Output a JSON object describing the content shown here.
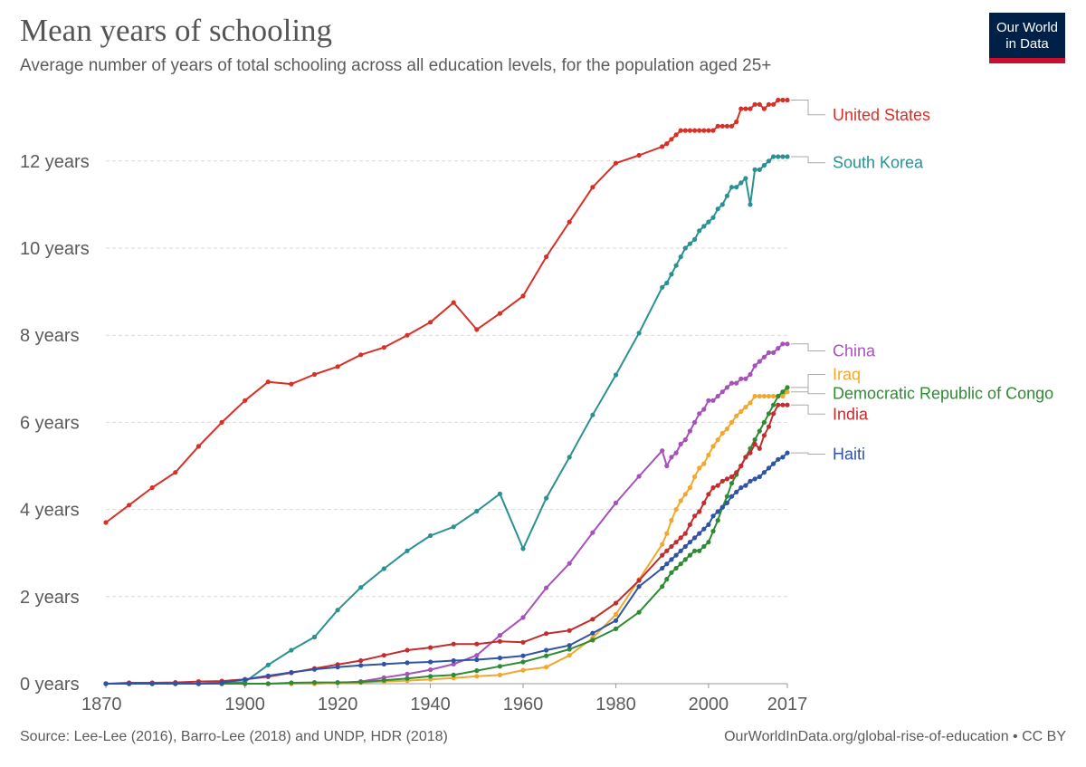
{
  "header": {
    "title": "Mean years of schooling",
    "subtitle": "Average number of years of total schooling across all education levels, for the population aged 25+",
    "logo_line1": "Our World",
    "logo_line2": "in Data",
    "logo_colors": {
      "background": "#002147",
      "accent": "#c8102e"
    }
  },
  "footer": {
    "source": "Source: Lee-Lee (2016), Barro-Lee (2018) and UNDP, HDR (2018)",
    "credit": "OurWorldInData.org/global-rise-of-education • CC BY"
  },
  "chart_data": {
    "type": "line",
    "title": "Mean years of schooling",
    "subtitle": "Average number of years of total schooling across all education levels, for the population aged 25+",
    "xlim": [
      1870,
      2017
    ],
    "ylim": [
      0,
      13.4
    ],
    "x_ticks": [
      {
        "value": 1870,
        "label": "1870"
      },
      {
        "value": 1900,
        "label": "1900"
      },
      {
        "value": 1920,
        "label": "1920"
      },
      {
        "value": 1940,
        "label": "1940"
      },
      {
        "value": 1960,
        "label": "1960"
      },
      {
        "value": 1980,
        "label": "1980"
      },
      {
        "value": 2000,
        "label": "2000"
      },
      {
        "value": 2017,
        "label": "2017"
      }
    ],
    "y_ticks": [
      {
        "value": 0,
        "label": "0 years"
      },
      {
        "value": 2,
        "label": "2 years"
      },
      {
        "value": 4,
        "label": "4 years"
      },
      {
        "value": 6,
        "label": "6 years"
      },
      {
        "value": 8,
        "label": "8 years"
      },
      {
        "value": 10,
        "label": "10 years"
      },
      {
        "value": 12,
        "label": "12 years"
      }
    ],
    "grid": "horizontal dashed",
    "legend": "right, labels at line ends",
    "series": [
      {
        "name": "United States",
        "color": "#d73027",
        "x": [
          1870,
          1875,
          1880,
          1885,
          1890,
          1895,
          1900,
          1905,
          1910,
          1915,
          1920,
          1925,
          1930,
          1935,
          1940,
          1945,
          1950,
          1955,
          1960,
          1965,
          1970,
          1975,
          1980,
          1985,
          1990,
          1991,
          1992,
          1993,
          1994,
          1995,
          1996,
          1997,
          1998,
          1999,
          2000,
          2001,
          2002,
          2003,
          2004,
          2005,
          2006,
          2007,
          2008,
          2009,
          2010,
          2011,
          2012,
          2013,
          2014,
          2015,
          2016,
          2017
        ],
        "y": [
          3.7,
          4.1,
          4.5,
          4.85,
          5.45,
          6.0,
          6.5,
          6.93,
          6.88,
          7.1,
          7.28,
          7.55,
          7.72,
          8.0,
          8.3,
          8.75,
          8.13,
          8.5,
          8.9,
          9.8,
          10.6,
          11.4,
          11.95,
          12.13,
          12.33,
          12.4,
          12.5,
          12.6,
          12.7,
          12.7,
          12.7,
          12.7,
          12.7,
          12.7,
          12.7,
          12.7,
          12.8,
          12.8,
          12.8,
          12.8,
          12.9,
          13.2,
          13.2,
          13.2,
          13.3,
          13.3,
          13.2,
          13.3,
          13.3,
          13.4,
          13.4,
          13.4
        ]
      },
      {
        "name": "South Korea",
        "color": "#2a9191",
        "x": [
          1870,
          1875,
          1880,
          1885,
          1890,
          1895,
          1900,
          1905,
          1910,
          1915,
          1920,
          1925,
          1930,
          1935,
          1940,
          1945,
          1950,
          1955,
          1960,
          1965,
          1970,
          1975,
          1980,
          1985,
          1990,
          1991,
          1992,
          1993,
          1994,
          1995,
          1996,
          1997,
          1998,
          1999,
          2000,
          2001,
          2002,
          2003,
          2004,
          2005,
          2006,
          2007,
          2008,
          2009,
          2010,
          2011,
          2012,
          2013,
          2014,
          2015,
          2016,
          2017
        ],
        "y": [
          0.0,
          0.0,
          0.0,
          0.0,
          0.0,
          0.0,
          0.04,
          0.43,
          0.77,
          1.07,
          1.69,
          2.21,
          2.64,
          3.05,
          3.4,
          3.6,
          3.96,
          4.36,
          3.1,
          4.26,
          5.2,
          6.17,
          7.09,
          8.05,
          9.1,
          9.2,
          9.4,
          9.6,
          9.8,
          10.0,
          10.1,
          10.2,
          10.4,
          10.5,
          10.6,
          10.7,
          10.9,
          11.0,
          11.2,
          11.4,
          11.4,
          11.5,
          11.6,
          11.0,
          11.8,
          11.8,
          11.9,
          12.0,
          12.1,
          12.1,
          12.1,
          12.1
        ]
      },
      {
        "name": "China",
        "color": "#a652ba",
        "x": [
          1870,
          1875,
          1880,
          1885,
          1890,
          1895,
          1900,
          1905,
          1910,
          1915,
          1920,
          1925,
          1930,
          1935,
          1940,
          1945,
          1950,
          1955,
          1960,
          1965,
          1970,
          1975,
          1980,
          1985,
          1990,
          1991,
          1992,
          1993,
          1994,
          1995,
          1996,
          1997,
          1998,
          1999,
          2000,
          2001,
          2002,
          2003,
          2004,
          2005,
          2006,
          2007,
          2008,
          2009,
          2010,
          2011,
          2012,
          2013,
          2014,
          2015,
          2016,
          2017
        ],
        "y": [
          0.0,
          0.0,
          0.0,
          0.0,
          0.0,
          0.0,
          0.0,
          0.0,
          0.0,
          0.0,
          0.02,
          0.05,
          0.14,
          0.22,
          0.32,
          0.45,
          0.65,
          1.11,
          1.52,
          2.2,
          2.76,
          3.47,
          4.15,
          4.76,
          5.35,
          5.0,
          5.2,
          5.3,
          5.5,
          5.6,
          5.8,
          6.0,
          6.2,
          6.3,
          6.5,
          6.5,
          6.6,
          6.7,
          6.8,
          6.9,
          6.9,
          7.0,
          7.0,
          7.1,
          7.3,
          7.4,
          7.5,
          7.6,
          7.6,
          7.7,
          7.8,
          7.8
        ]
      },
      {
        "name": "Iraq",
        "color": "#f2a72e",
        "x": [
          1870,
          1875,
          1880,
          1885,
          1890,
          1895,
          1900,
          1905,
          1910,
          1915,
          1920,
          1925,
          1930,
          1935,
          1940,
          1945,
          1950,
          1955,
          1960,
          1965,
          1970,
          1975,
          1980,
          1985,
          1990,
          1991,
          1992,
          1993,
          1994,
          1995,
          1996,
          1997,
          1998,
          1999,
          2000,
          2001,
          2002,
          2003,
          2004,
          2005,
          2006,
          2007,
          2008,
          2009,
          2010,
          2011,
          2012,
          2013,
          2014,
          2015,
          2016,
          2017
        ],
        "y": [
          0.0,
          0.0,
          0.0,
          0.0,
          0.0,
          0.0,
          0.0,
          0.0,
          0.0,
          0.0,
          0.02,
          0.03,
          0.05,
          0.07,
          0.1,
          0.13,
          0.17,
          0.2,
          0.31,
          0.38,
          0.65,
          1.05,
          1.59,
          2.39,
          3.2,
          3.45,
          3.75,
          4.0,
          4.2,
          4.35,
          4.5,
          4.75,
          4.95,
          5.05,
          5.25,
          5.45,
          5.6,
          5.75,
          5.85,
          6.0,
          6.15,
          6.25,
          6.35,
          6.45,
          6.6,
          6.6,
          6.6,
          6.6,
          6.6,
          6.6,
          6.6,
          6.7
        ]
      },
      {
        "name": "Democratic Republic of Congo",
        "color": "#2e8b34",
        "x": [
          1870,
          1875,
          1880,
          1885,
          1890,
          1895,
          1900,
          1905,
          1910,
          1915,
          1920,
          1925,
          1930,
          1935,
          1940,
          1945,
          1950,
          1955,
          1960,
          1965,
          1970,
          1975,
          1980,
          1985,
          1990,
          1991,
          1992,
          1993,
          1994,
          1995,
          1996,
          1997,
          1998,
          1999,
          2000,
          2001,
          2002,
          2003,
          2004,
          2005,
          2006,
          2007,
          2008,
          2009,
          2010,
          2011,
          2012,
          2013,
          2014,
          2015,
          2016,
          2017
        ],
        "y": [
          0.0,
          0.0,
          0.0,
          0.0,
          0.0,
          0.0,
          0.0,
          0.0,
          0.02,
          0.03,
          0.03,
          0.04,
          0.08,
          0.12,
          0.17,
          0.2,
          0.3,
          0.4,
          0.5,
          0.64,
          0.79,
          1.0,
          1.26,
          1.64,
          2.23,
          2.4,
          2.55,
          2.65,
          2.75,
          2.85,
          2.95,
          3.05,
          3.05,
          3.15,
          3.25,
          3.5,
          3.75,
          4.05,
          4.3,
          4.6,
          4.8,
          5.0,
          5.2,
          5.4,
          5.6,
          5.8,
          6.0,
          6.2,
          6.4,
          6.6,
          6.7,
          6.8
        ]
      },
      {
        "name": "India",
        "color": "#c22d2d",
        "x": [
          1870,
          1875,
          1880,
          1885,
          1890,
          1895,
          1900,
          1905,
          1910,
          1915,
          1920,
          1925,
          1930,
          1935,
          1940,
          1945,
          1950,
          1955,
          1960,
          1965,
          1970,
          1975,
          1980,
          1985,
          1990,
          1991,
          1992,
          1993,
          1994,
          1995,
          1996,
          1997,
          1998,
          1999,
          2000,
          2001,
          2002,
          2003,
          2004,
          2005,
          2006,
          2007,
          2008,
          2009,
          2010,
          2011,
          2012,
          2013,
          2014,
          2015,
          2016,
          2017
        ],
        "y": [
          0.0,
          0.02,
          0.02,
          0.03,
          0.05,
          0.06,
          0.1,
          0.16,
          0.25,
          0.35,
          0.44,
          0.53,
          0.65,
          0.77,
          0.83,
          0.91,
          0.91,
          0.97,
          0.95,
          1.15,
          1.22,
          1.48,
          1.85,
          2.37,
          2.95,
          3.05,
          3.15,
          3.25,
          3.35,
          3.45,
          3.65,
          3.85,
          3.95,
          4.15,
          4.35,
          4.5,
          4.55,
          4.65,
          4.7,
          4.75,
          4.85,
          5.0,
          5.2,
          5.3,
          5.5,
          5.4,
          5.7,
          5.9,
          6.2,
          6.4,
          6.4,
          6.4
        ]
      },
      {
        "name": "Haiti",
        "color": "#3053a6",
        "x": [
          1870,
          1875,
          1880,
          1885,
          1890,
          1895,
          1900,
          1905,
          1910,
          1915,
          1920,
          1925,
          1930,
          1935,
          1940,
          1945,
          1950,
          1955,
          1960,
          1965,
          1970,
          1975,
          1980,
          1985,
          1990,
          1991,
          1992,
          1993,
          1994,
          1995,
          1996,
          1997,
          1998,
          1999,
          2000,
          2001,
          2002,
          2003,
          2004,
          2005,
          2006,
          2007,
          2008,
          2009,
          2010,
          2011,
          2012,
          2013,
          2014,
          2015,
          2016,
          2017
        ],
        "y": [
          0.0,
          0.0,
          0.0,
          0.0,
          0.0,
          0.02,
          0.1,
          0.18,
          0.26,
          0.33,
          0.38,
          0.42,
          0.45,
          0.48,
          0.5,
          0.53,
          0.55,
          0.59,
          0.64,
          0.77,
          0.88,
          1.16,
          1.45,
          2.23,
          2.65,
          2.75,
          2.85,
          2.95,
          3.05,
          3.15,
          3.25,
          3.35,
          3.45,
          3.55,
          3.65,
          3.85,
          3.95,
          4.05,
          4.15,
          4.3,
          4.4,
          4.5,
          4.55,
          4.65,
          4.7,
          4.75,
          4.85,
          4.95,
          5.05,
          5.15,
          5.2,
          5.3
        ]
      }
    ],
    "end_labels": [
      {
        "name": "United States",
        "color": "#d73027",
        "label_y": 13.06
      },
      {
        "name": "South Korea",
        "color": "#2a9191",
        "label_y": 11.96
      },
      {
        "name": "China",
        "color": "#a652ba",
        "label_y": 7.64
      },
      {
        "name": "Iraq",
        "color": "#f2a72e",
        "label_y": 7.1
      },
      {
        "name": "Democratic Republic of Congo",
        "color": "#2e8b34",
        "label_y": 6.66
      },
      {
        "name": "India",
        "color": "#c22d2d",
        "label_y": 6.19
      },
      {
        "name": "Haiti",
        "color": "#3053a6",
        "label_y": 5.27
      }
    ]
  }
}
